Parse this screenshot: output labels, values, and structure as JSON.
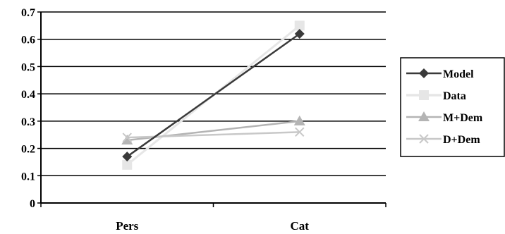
{
  "chart_data": {
    "type": "line",
    "categories": [
      "Pers",
      "Cat"
    ],
    "ylim": [
      0,
      0.7
    ],
    "yticks": [
      0,
      0.1,
      0.2,
      0.3,
      0.4,
      0.5,
      0.6,
      0.7
    ],
    "ytick_labels": [
      "0",
      "0.1",
      "0.2",
      "0.3",
      "0.4",
      "0.5",
      "0.6",
      "0.7"
    ],
    "grid": true,
    "legend_position": "right",
    "series": [
      {
        "name": "Model",
        "values": [
          0.17,
          0.62
        ],
        "color": "#3a3a3a",
        "marker": "diamond"
      },
      {
        "name": "Data",
        "values": [
          0.14,
          0.65
        ],
        "color": "#e6e6e6",
        "marker": "square"
      },
      {
        "name": "M+Dem",
        "values": [
          0.23,
          0.3
        ],
        "color": "#b4b4b4",
        "marker": "triangle"
      },
      {
        "name": "D+Dem",
        "values": [
          0.24,
          0.26
        ],
        "color": "#c8c8c8",
        "marker": "x"
      }
    ]
  }
}
